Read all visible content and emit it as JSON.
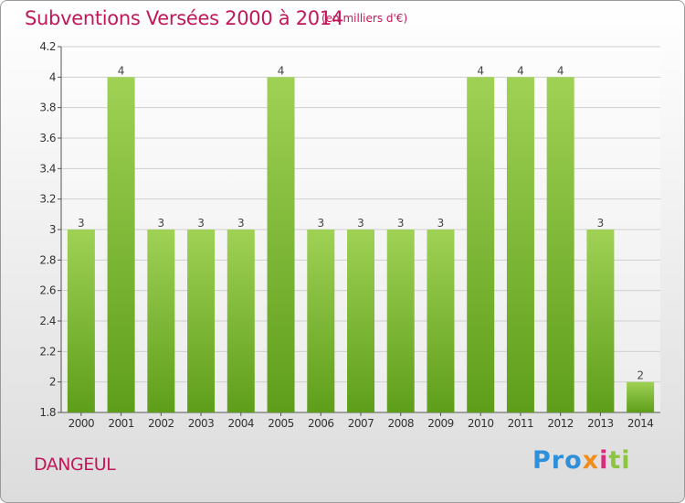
{
  "title": "Subventions Versées 2000 à 2014",
  "subtitle": "(en milliers d'€)",
  "place": "DANGEUL",
  "logo": {
    "p1": "Pro",
    "p2": "x",
    "p3": "i",
    "p4": "ti"
  },
  "colors": {
    "bar_top": "#9fd155",
    "bar_bottom": "#5e9e1a",
    "title": "#c0185a",
    "grid": "#cfcfcf"
  },
  "chart_data": {
    "type": "bar",
    "categories": [
      "2000",
      "2001",
      "2002",
      "2003",
      "2004",
      "2005",
      "2006",
      "2007",
      "2008",
      "2009",
      "2010",
      "2011",
      "2012",
      "2013",
      "2014"
    ],
    "values": [
      3,
      4,
      3,
      3,
      3,
      4,
      3,
      3,
      3,
      3,
      4,
      4,
      4,
      3,
      2
    ],
    "data_labels": [
      "3",
      "4",
      "3",
      "3",
      "3",
      "4",
      "3",
      "3",
      "3",
      "3",
      "4",
      "4",
      "4",
      "3",
      "2"
    ],
    "yticks": [
      "1.8",
      "2",
      "2.2",
      "2.4",
      "2.6",
      "2.8",
      "3",
      "3.2",
      "3.4",
      "3.6",
      "3.8",
      "4",
      "4.2"
    ],
    "ylim": [
      1.8,
      4.2
    ],
    "title": "Subventions Versées 2000 à 2014",
    "xlabel": "",
    "ylabel": "",
    "grid": true
  }
}
